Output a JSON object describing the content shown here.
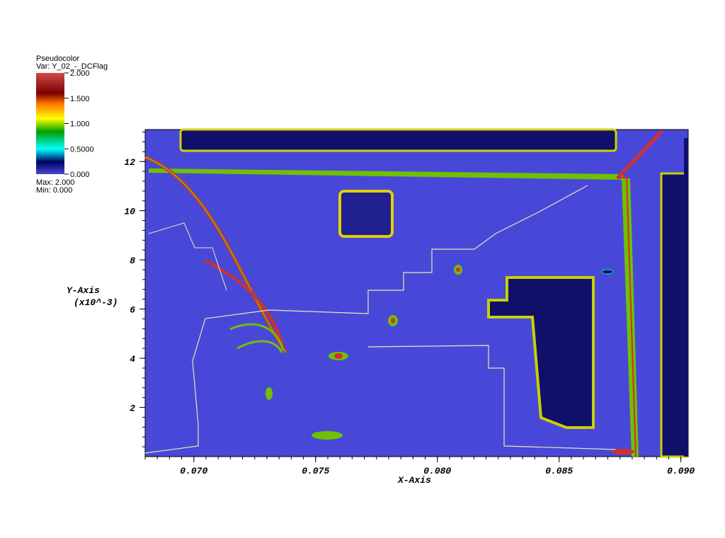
{
  "legend": {
    "title": "Pseudocolor",
    "var_label": "Var: Y_02_-_DCFlag",
    "max_label": "Max:  2.000",
    "min_label": "Min:  0.000",
    "ticks": [
      "2.000",
      "1.500",
      "1.000",
      "0.5000",
      "0.000"
    ],
    "colors": [
      "#d24a4a",
      "#7a0000",
      "#ff7000",
      "#ffff00",
      "#00a000",
      "#00ffff",
      "#000060",
      "#4848d8"
    ]
  },
  "chart_data": {
    "type": "heatmap",
    "variable": "Y_02_-_DCFlag",
    "value_range": [
      0.0,
      2.0
    ],
    "xlabel": "X-Axis",
    "ylabel": "Y-Axis",
    "ylabel_scale": "(x10^-3)",
    "xlim": [
      0.068,
      0.0903
    ],
    "ylim": [
      0,
      13.3
    ],
    "x_ticks": [
      "0.070",
      "0.075",
      "0.080",
      "0.085",
      "0.090"
    ],
    "y_ticks": [
      "2",
      "4",
      "6",
      "8",
      "10",
      "12"
    ],
    "background_color": "#4848d8"
  }
}
